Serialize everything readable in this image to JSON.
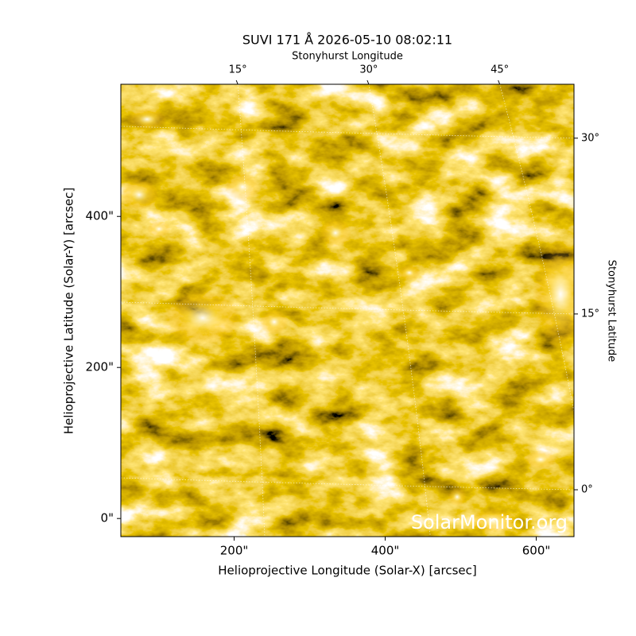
{
  "chart_data": {
    "type": "image",
    "title": "SUVI 171 Å 2026-05-10 08:02:11",
    "xlabel": "Helioprojective Longitude (Solar-X) [arcsec]",
    "ylabel": "Helioprojective Latitude (Solar-Y) [arcsec]",
    "x2label": "Stonyhurst Longitude",
    "y2label": "Stonyhurst Latitude",
    "annotation": "SolarMonitor.org",
    "xlim": [
      50,
      650
    ],
    "ylim": [
      -24,
      575
    ],
    "xticks": [
      {
        "value": 200,
        "label": "200\""
      },
      {
        "value": 400,
        "label": "400\""
      },
      {
        "value": 600,
        "label": "600\""
      }
    ],
    "yticks": [
      {
        "value": 0,
        "label": "0\""
      },
      {
        "value": 200,
        "label": "200\""
      },
      {
        "value": 400,
        "label": "400\""
      }
    ],
    "x2lim": [
      1.6,
      53.5
    ],
    "x2ticks": [
      {
        "value": 15,
        "label": "15°"
      },
      {
        "value": 30,
        "label": "30°"
      },
      {
        "value": 45,
        "label": "45°"
      }
    ],
    "y2lim": [
      -4,
      34.6
    ],
    "y2ticks": [
      {
        "value": 0,
        "label": "0°"
      },
      {
        "value": 15,
        "label": "15°"
      },
      {
        "value": 30,
        "label": "30°"
      }
    ],
    "grid": true,
    "colormap": [
      "#000000",
      "#7a4a00",
      "#d08c00",
      "#ffc82e",
      "#ffffff"
    ]
  }
}
